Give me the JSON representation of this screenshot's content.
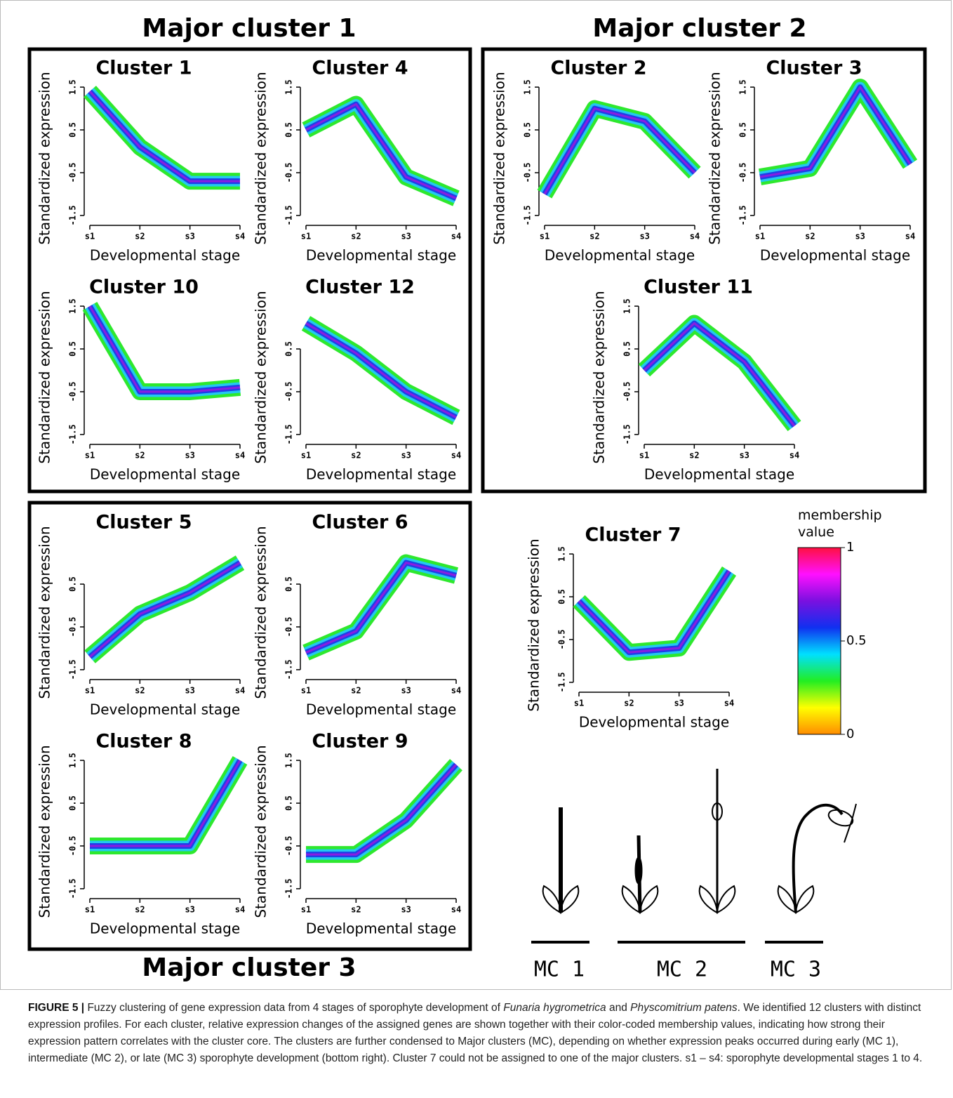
{
  "figure": {
    "group_titles": [
      "Major cluster 1",
      "Major cluster 2",
      "Major cluster 3"
    ],
    "colorbar": {
      "label": "membership value",
      "lim": [
        0,
        1
      ],
      "ticks": [
        0,
        0.5,
        1
      ],
      "colors": [
        "#ff8c00",
        "#ffff00",
        "#22ee22",
        "#00e0ff",
        "#1030f0",
        "#7a10e0",
        "#ff10ff",
        "#ff1040"
      ]
    },
    "stages": [
      "MC 1",
      "MC 2",
      "MC 3"
    ],
    "band_colors": [
      "#2ee82e",
      "#22c8f0",
      "#1f3fe8",
      "#8a1ee0"
    ],
    "caption": [
      "FIGURE 5 |",
      " Fuzzy clustering of gene expression data from 4 stages of sporophyte development of ",
      "Funaria hygrometrica",
      " and ",
      "Physcomitrium patens",
      ". We identified 12 clusters with distinct expression profiles. For each cluster, relative expression changes of the assigned genes are shown together with their color-coded membership values, indicating how strong their expression pattern correlates with the cluster core. The clusters are further condensed to Major clusters (MC), depending on whether expression peaks occurred during early (MC 1), intermediate (MC 2), or late (MC 3) sporophyte development (bottom right). Cluster 7 could not be assigned to one of the major clusters. s1 – s4: sporophyte developmental stages 1 to 4."
    ]
  },
  "chart_data": [
    {
      "type": "line",
      "title": "Cluster 1",
      "x_label": "Developmental stage",
      "y_label": "Standardized expression",
      "categories": [
        "s1",
        "s2",
        "s3",
        "s4"
      ],
      "values": [
        1.4,
        0.1,
        -0.7,
        -0.7
      ],
      "ylim": [
        -1.6,
        1.6
      ],
      "yticks": [
        -1.5,
        -0.5,
        0.5,
        1.5
      ]
    },
    {
      "type": "line",
      "title": "Cluster 4",
      "x_label": "Developmental stage",
      "y_label": "Standardized expression",
      "categories": [
        "s1",
        "s2",
        "s3",
        "s4"
      ],
      "values": [
        0.5,
        1.1,
        -0.6,
        -1.1
      ],
      "ylim": [
        -1.6,
        1.6
      ],
      "yticks": [
        -1.5,
        -0.5,
        0.5,
        1.5
      ]
    },
    {
      "type": "line",
      "title": "Cluster 10",
      "x_label": "Developmental stage",
      "y_label": "Standardized expression",
      "categories": [
        "s1",
        "s2",
        "s3",
        "s4"
      ],
      "values": [
        1.5,
        -0.5,
        -0.5,
        -0.4
      ],
      "ylim": [
        -1.6,
        1.6
      ],
      "yticks": [
        -1.5,
        -0.5,
        0.5,
        1.5
      ]
    },
    {
      "type": "line",
      "title": "Cluster 12",
      "x_label": "Developmental stage",
      "y_label": "Standardized expression",
      "categories": [
        "s1",
        "s2",
        "s3",
        "s4"
      ],
      "values": [
        1.1,
        0.4,
        -0.5,
        -1.1
      ],
      "ylim": [
        -1.6,
        1.6
      ],
      "yticks": [
        -1.5,
        -0.5,
        0.5
      ]
    },
    {
      "type": "line",
      "title": "Cluster 2",
      "x_label": "Developmental stage",
      "y_label": "Standardized expression",
      "categories": [
        "s1",
        "s2",
        "s3",
        "s4"
      ],
      "values": [
        -1.0,
        1.0,
        0.7,
        -0.5
      ],
      "ylim": [
        -1.6,
        1.6
      ],
      "yticks": [
        -1.5,
        -0.5,
        0.5,
        1.5
      ]
    },
    {
      "type": "line",
      "title": "Cluster 3",
      "x_label": "Developmental stage",
      "y_label": "Standardized expression",
      "categories": [
        "s1",
        "s2",
        "s3",
        "s4"
      ],
      "values": [
        -0.6,
        -0.4,
        1.5,
        -0.3
      ],
      "ylim": [
        -1.6,
        1.6
      ],
      "yticks": [
        -1.5,
        -0.5,
        0.5,
        1.5
      ]
    },
    {
      "type": "line",
      "title": "Cluster 11",
      "x_label": "Developmental stage",
      "y_label": "Standardized expression",
      "categories": [
        "s1",
        "s2",
        "s3",
        "s4"
      ],
      "values": [
        0.0,
        1.1,
        0.2,
        -1.3
      ],
      "ylim": [
        -1.6,
        1.6
      ],
      "yticks": [
        -1.5,
        -0.5,
        0.5,
        1.5
      ]
    },
    {
      "type": "line",
      "title": "Cluster 5",
      "x_label": "Developmental stage",
      "y_label": "Standardized expression",
      "categories": [
        "s1",
        "s2",
        "s3",
        "s4"
      ],
      "values": [
        -1.2,
        -0.2,
        0.3,
        1.0
      ],
      "ylim": [
        -1.6,
        1.6
      ],
      "yticks": [
        -1.5,
        -0.5,
        0.5
      ]
    },
    {
      "type": "line",
      "title": "Cluster 6",
      "x_label": "Developmental stage",
      "y_label": "Standardized expression",
      "categories": [
        "s1",
        "s2",
        "s3",
        "s4"
      ],
      "values": [
        -1.1,
        -0.6,
        1.0,
        0.7
      ],
      "ylim": [
        -1.6,
        1.6
      ],
      "yticks": [
        -1.5,
        -0.5,
        0.5
      ]
    },
    {
      "type": "line",
      "title": "Cluster 8",
      "x_label": "Developmental stage",
      "y_label": "Standardized expression",
      "categories": [
        "s1",
        "s2",
        "s3",
        "s4"
      ],
      "values": [
        -0.5,
        -0.5,
        -0.5,
        1.5
      ],
      "ylim": [
        -1.6,
        1.6
      ],
      "yticks": [
        -1.5,
        -0.5,
        0.5,
        1.5
      ]
    },
    {
      "type": "line",
      "title": "Cluster 9",
      "x_label": "Developmental stage",
      "y_label": "Standardized expression",
      "categories": [
        "s1",
        "s2",
        "s3",
        "s4"
      ],
      "values": [
        -0.7,
        -0.7,
        0.1,
        1.4
      ],
      "ylim": [
        -1.6,
        1.6
      ],
      "yticks": [
        -1.5,
        -0.5,
        0.5,
        1.5
      ]
    },
    {
      "type": "line",
      "title": "Cluster 7",
      "x_label": "Developmental stage",
      "y_label": "Standardized expression",
      "categories": [
        "s1",
        "s2",
        "s3",
        "s4"
      ],
      "values": [
        0.4,
        -0.8,
        -0.7,
        1.1
      ],
      "ylim": [
        -1.6,
        1.6
      ],
      "yticks": [
        -1.5,
        -0.5,
        0.5,
        1.5
      ]
    }
  ]
}
